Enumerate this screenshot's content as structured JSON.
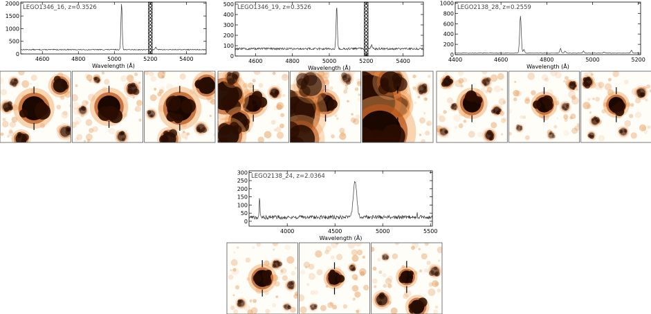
{
  "chart_data": [
    {
      "type": "line",
      "title": "LEGO1346_16, z=0.3526",
      "xlabel": "Wavelength (Å)",
      "ylabel": "",
      "xlim": [
        4480,
        5510
      ],
      "ylim": [
        0,
        2050
      ],
      "xticks": [
        4600,
        4800,
        5000,
        5200,
        5400
      ],
      "yticks": [
        0,
        500,
        1000,
        1500,
        2000
      ],
      "continuum": 170,
      "noise": 18,
      "lines": [
        {
          "center": 5040,
          "height": 1830,
          "width": 3.5
        },
        {
          "center": 5230,
          "height": 110,
          "width": 4
        }
      ],
      "masked_band": [
        5190,
        5210
      ],
      "stamps": [
        {
          "blobs": [
            [
              0.48,
              0.52,
              0.17,
              1
            ],
            [
              0.85,
              0.2,
              0.1,
              0.9
            ],
            [
              0.1,
              0.5,
              0.06,
              0.7
            ],
            [
              0.3,
              0.95,
              0.08,
              0.8
            ],
            [
              0.92,
              0.85,
              0.07,
              0.6
            ],
            [
              0.2,
              0.15,
              0.05,
              0.5
            ]
          ]
        },
        {
          "blobs": [
            [
              0.52,
              0.5,
              0.16,
              1
            ],
            [
              0.85,
              0.25,
              0.07,
              0.7
            ],
            [
              0.15,
              0.55,
              0.05,
              0.5
            ],
            [
              0.7,
              0.92,
              0.06,
              0.6
            ],
            [
              0.35,
              0.12,
              0.04,
              0.5
            ]
          ]
        },
        {
          "blobs": [
            [
              0.5,
              0.52,
              0.18,
              1
            ],
            [
              0.88,
              0.2,
              0.12,
              0.95
            ],
            [
              0.1,
              0.6,
              0.05,
              0.5
            ],
            [
              0.35,
              0.95,
              0.1,
              0.85
            ],
            [
              0.8,
              0.8,
              0.06,
              0.6
            ]
          ]
        }
      ]
    },
    {
      "type": "line",
      "title": "LEGO1346_19, z=0.3526",
      "xlabel": "Wavelength (Å)",
      "ylabel": "",
      "xlim": [
        4490,
        5510
      ],
      "ylim": [
        0,
        520
      ],
      "xticks": [
        4600,
        4800,
        5000,
        5200,
        5400
      ],
      "yticks": [
        0,
        100,
        200,
        300,
        400,
        500
      ],
      "continuum": 70,
      "noise": 10,
      "lines": [
        {
          "center": 5040,
          "height": 410,
          "width": 3.5
        },
        {
          "center": 5230,
          "height": 30,
          "width": 5
        }
      ],
      "masked_band": [
        5190,
        5210
      ],
      "stamps": [
        {
          "blobs": [
            [
              0.5,
              0.45,
              0.12,
              1
            ],
            [
              0.1,
              0.35,
              0.2,
              0.9
            ],
            [
              0.3,
              0.7,
              0.12,
              0.9
            ],
            [
              0.15,
              0.9,
              0.15,
              0.9
            ],
            [
              0.8,
              0.3,
              0.06,
              0.7
            ],
            [
              0.2,
              0.1,
              0.08,
              0.6
            ]
          ]
        },
        {
          "blobs": [
            [
              0.5,
              0.45,
              0.12,
              1
            ],
            [
              0.1,
              0.6,
              0.25,
              0.8
            ],
            [
              0.3,
              0.2,
              0.15,
              0.6
            ],
            [
              0.15,
              0.95,
              0.2,
              0.8
            ],
            [
              0.8,
              0.1,
              0.06,
              0.5
            ]
          ]
        },
        {
          "blobs": [
            [
              0.5,
              0.48,
              0.13,
              1
            ],
            [
              0.1,
              0.4,
              0.35,
              1
            ],
            [
              0.25,
              0.85,
              0.3,
              1
            ],
            [
              0.4,
              0.15,
              0.15,
              0.8
            ],
            [
              0.85,
              0.25,
              0.06,
              0.6
            ]
          ]
        }
      ]
    },
    {
      "type": "line",
      "title": "LEGO2138_28, z=0.2559",
      "xlabel": "Wavelength (Å)",
      "ylabel": "",
      "xlim": [
        4400,
        5210
      ],
      "ylim": [
        0,
        1020
      ],
      "xticks": [
        4400,
        4600,
        4800,
        5000,
        5200
      ],
      "yticks": [
        0,
        200,
        400,
        600,
        800,
        1000
      ],
      "continuum": 30,
      "noise": 4,
      "lines": [
        {
          "center": 4685,
          "height": 720,
          "width": 3.5
        },
        {
          "center": 4700,
          "height": 70,
          "width": 3
        },
        {
          "center": 4860,
          "height": 90,
          "width": 3
        },
        {
          "center": 4880,
          "height": 40,
          "width": 3
        },
        {
          "center": 4960,
          "height": 40,
          "width": 3
        },
        {
          "center": 5050,
          "height": 20,
          "width": 3
        },
        {
          "center": 5170,
          "height": 55,
          "width": 3
        }
      ],
      "masked_band": null,
      "stamps": [
        {
          "blobs": [
            [
              0.5,
              0.45,
              0.13,
              1
            ],
            [
              0.15,
              0.15,
              0.06,
              0.9
            ],
            [
              0.85,
              0.55,
              0.05,
              0.7
            ],
            [
              0.75,
              0.9,
              0.06,
              0.7
            ],
            [
              0.1,
              0.85,
              0.05,
              0.5
            ],
            [
              0.25,
              0.5,
              0.04,
              0.5
            ],
            [
              0.7,
              0.15,
              0.05,
              0.5
            ]
          ]
        },
        {
          "blobs": [
            [
              0.5,
              0.47,
              0.11,
              1
            ],
            [
              0.9,
              0.2,
              0.05,
              0.7
            ],
            [
              0.8,
              0.5,
              0.05,
              0.5
            ],
            [
              0.15,
              0.8,
              0.04,
              0.4
            ],
            [
              0.6,
              0.9,
              0.04,
              0.4
            ]
          ]
        },
        {
          "blobs": [
            [
              0.5,
              0.47,
              0.11,
              1
            ],
            [
              0.1,
              0.15,
              0.06,
              0.8
            ],
            [
              0.2,
              0.7,
              0.05,
              0.6
            ],
            [
              0.85,
              0.3,
              0.06,
              0.6
            ],
            [
              0.15,
              0.9,
              0.04,
              0.5
            ],
            [
              0.6,
              0.85,
              0.05,
              0.5
            ]
          ]
        }
      ]
    },
    {
      "type": "line",
      "title": "LEGO2138_24, z=2.0364",
      "xlabel": "Wavelength (Å)",
      "ylabel": "",
      "xlim": [
        3600,
        5520
      ],
      "ylim": [
        -30,
        310
      ],
      "xticks": [
        4000,
        4500,
        5000,
        5500
      ],
      "yticks": [
        0,
        50,
        100,
        150,
        200,
        250,
        300
      ],
      "continuum": 25,
      "noise": 12,
      "lines": [
        {
          "center": 3710,
          "height": 120,
          "width": 4
        },
        {
          "center": 4710,
          "height": 225,
          "width": 18
        },
        {
          "center": 5360,
          "height": 30,
          "width": 3
        }
      ],
      "masked_band": null,
      "stamps": [
        {
          "blobs": [
            [
              0.5,
              0.5,
              0.12,
              1
            ],
            [
              0.7,
              0.3,
              0.05,
              0.6
            ],
            [
              0.9,
              0.6,
              0.05,
              0.5
            ],
            [
              0.2,
              0.85,
              0.05,
              0.5
            ],
            [
              0.85,
              0.9,
              0.04,
              0.4
            ]
          ]
        },
        {
          "blobs": [
            [
              0.5,
              0.5,
              0.09,
              1
            ],
            [
              0.75,
              0.35,
              0.04,
              0.5
            ],
            [
              0.2,
              0.9,
              0.04,
              0.4
            ]
          ]
        },
        {
          "blobs": [
            [
              0.5,
              0.48,
              0.09,
              1
            ],
            [
              0.65,
              0.9,
              0.1,
              0.95
            ],
            [
              0.15,
              0.8,
              0.08,
              0.7
            ],
            [
              0.9,
              0.4,
              0.06,
              0.5
            ],
            [
              0.2,
              0.2,
              0.04,
              0.4
            ]
          ]
        }
      ]
    }
  ]
}
